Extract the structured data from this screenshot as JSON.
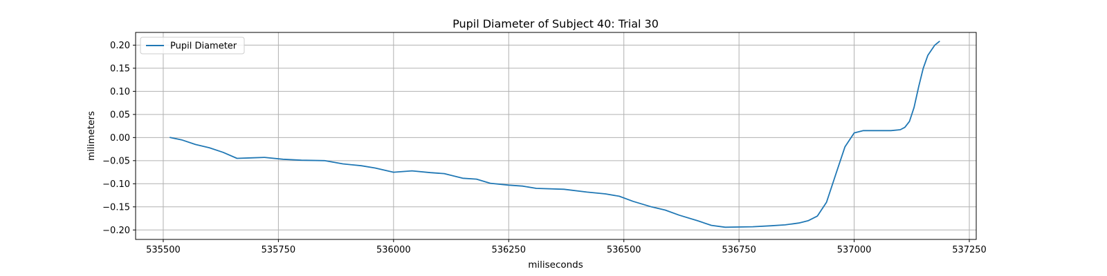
{
  "chart_data": {
    "type": "line",
    "title": "Pupil Diameter of Subject 40: Trial 30",
    "xlabel": "miliseconds",
    "ylabel": "milimeters",
    "xlim": [
      535440,
      537265
    ],
    "ylim": [
      -0.2205,
      0.2275
    ],
    "xticks": [
      535500,
      535750,
      536000,
      536250,
      536500,
      536750,
      537000,
      537250
    ],
    "yticks": [
      -0.2,
      -0.15,
      -0.1,
      -0.05,
      0.0,
      0.05,
      0.1,
      0.15,
      0.2
    ],
    "xtick_labels": [
      "535500",
      "535750",
      "536000",
      "536250",
      "536500",
      "536750",
      "537000",
      "537250"
    ],
    "ytick_labels": [
      "−0.20",
      "−0.15",
      "−0.10",
      "−0.05",
      "0.00",
      "0.05",
      "0.10",
      "0.15",
      "0.20"
    ],
    "grid": true,
    "legend_position": "upper left",
    "series": [
      {
        "name": "Pupil Diameter",
        "color": "#1f77b4",
        "x": [
          535515,
          535540,
          535570,
          535600,
          535630,
          535660,
          535690,
          535720,
          535760,
          535800,
          535850,
          535890,
          535930,
          535960,
          536000,
          536040,
          536080,
          536110,
          536150,
          536180,
          536210,
          536250,
          536280,
          536310,
          536370,
          536420,
          536460,
          536490,
          536520,
          536560,
          536590,
          536620,
          536660,
          536690,
          536720,
          536780,
          536820,
          536850,
          536880,
          536900,
          536920,
          536940,
          536960,
          536980,
          537000,
          537020,
          537040,
          537060,
          537080,
          537100,
          537110,
          537120,
          537130,
          537140,
          537150,
          537160,
          537175,
          537185
        ],
        "y": [
          0.0,
          -0.005,
          -0.015,
          -0.022,
          -0.032,
          -0.045,
          -0.044,
          -0.043,
          -0.047,
          -0.049,
          -0.05,
          -0.057,
          -0.061,
          -0.066,
          -0.075,
          -0.072,
          -0.076,
          -0.078,
          -0.088,
          -0.09,
          -0.099,
          -0.103,
          -0.105,
          -0.11,
          -0.112,
          -0.118,
          -0.122,
          -0.127,
          -0.138,
          -0.15,
          -0.157,
          -0.168,
          -0.18,
          -0.19,
          -0.194,
          -0.193,
          -0.191,
          -0.189,
          -0.185,
          -0.18,
          -0.17,
          -0.14,
          -0.08,
          -0.02,
          0.01,
          0.015,
          0.015,
          0.015,
          0.015,
          0.017,
          0.022,
          0.035,
          0.065,
          0.11,
          0.15,
          0.178,
          0.2,
          0.208
        ]
      }
    ]
  }
}
